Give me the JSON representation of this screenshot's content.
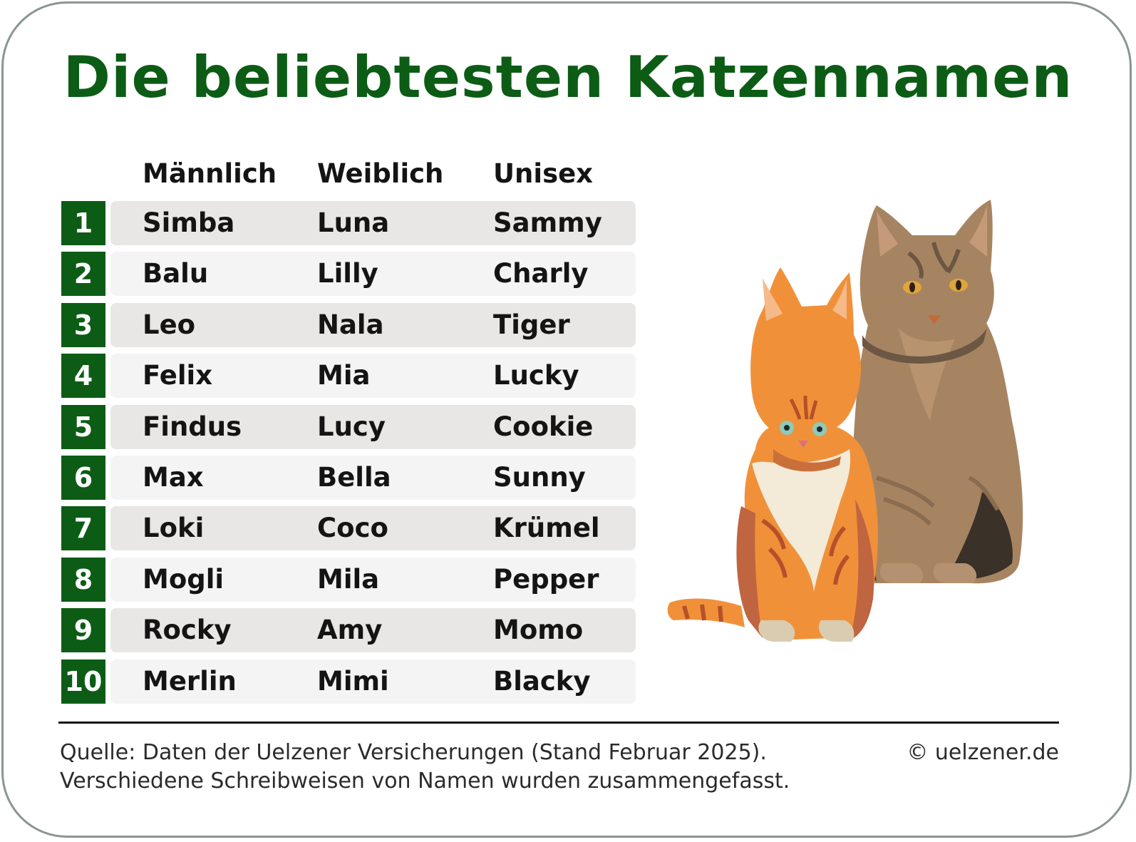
{
  "title": "Die beliebtesten Katzennamen",
  "columns": [
    "Männlich",
    "Weiblich",
    "Unisex"
  ],
  "rows": [
    {
      "rank": "1",
      "male": "Simba",
      "female": "Luna",
      "unisex": "Sammy"
    },
    {
      "rank": "2",
      "male": "Balu",
      "female": "Lilly",
      "unisex": "Charly"
    },
    {
      "rank": "3",
      "male": "Leo",
      "female": "Nala",
      "unisex": "Tiger"
    },
    {
      "rank": "4",
      "male": "Felix",
      "female": "Mia",
      "unisex": "Lucky"
    },
    {
      "rank": "5",
      "male": "Findus",
      "female": "Lucy",
      "unisex": "Cookie"
    },
    {
      "rank": "6",
      "male": "Max",
      "female": "Bella",
      "unisex": "Sunny"
    },
    {
      "rank": "7",
      "male": "Loki",
      "female": "Coco",
      "unisex": "Krümel"
    },
    {
      "rank": "8",
      "male": "Mogli",
      "female": "Mila",
      "unisex": "Pepper"
    },
    {
      "rank": "9",
      "male": "Rocky",
      "female": "Amy",
      "unisex": "Momo"
    },
    {
      "rank": "10",
      "male": "Merlin",
      "female": "Mimi",
      "unisex": "Blacky"
    }
  ],
  "footer": {
    "source_line1": "Quelle: Daten der Uelzener Versicherungen (Stand Februar 2025).",
    "source_line2": "Verschiedene Schreibweisen von Namen wurden zusammengefasst.",
    "copyright": "© uelzener.de"
  },
  "illustration": {
    "icon": "two-cats-illustration"
  },
  "colors": {
    "accent": "#0c5c16",
    "row_odd": "#e9e7e6",
    "row_even": "#f5f4f4",
    "border": "#8a9690"
  }
}
